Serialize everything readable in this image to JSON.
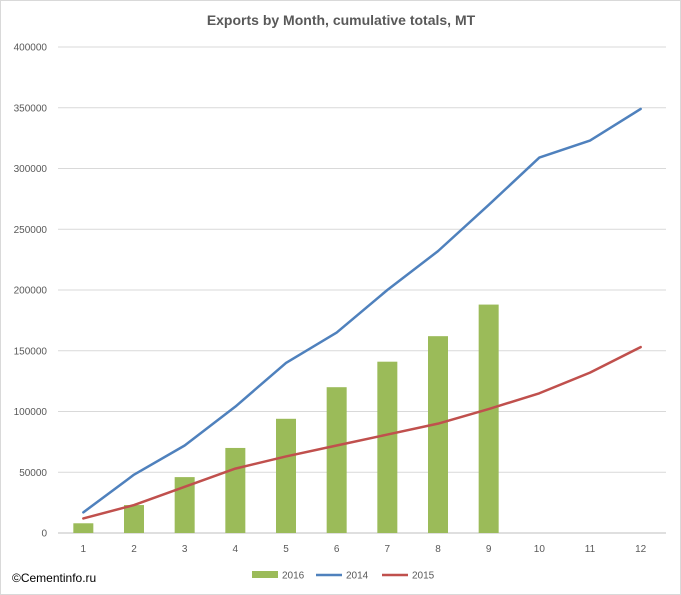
{
  "chart_data": {
    "type": "bar",
    "title": "Exports by Month, cumulative totals, MT",
    "xlabel": "",
    "ylabel": "",
    "categories": [
      "1",
      "2",
      "3",
      "4",
      "5",
      "6",
      "7",
      "8",
      "9",
      "10",
      "11",
      "12"
    ],
    "ylim": [
      0,
      400000
    ],
    "yticks": [
      "0",
      "50000",
      "100000",
      "150000",
      "200000",
      "250000",
      "300000",
      "350000",
      "400000"
    ],
    "grid": true,
    "legend_position": "bottom",
    "series": [
      {
        "name": "2016",
        "kind": "bar",
        "color": "#9bbb59",
        "values": [
          8000,
          23000,
          46000,
          70000,
          94000,
          120000,
          141000,
          162000,
          188000,
          null,
          null,
          null
        ]
      },
      {
        "name": "2014",
        "kind": "line",
        "color": "#4f81bd",
        "values": [
          17000,
          48000,
          72000,
          104000,
          140000,
          165000,
          200000,
          232000,
          270000,
          309000,
          323000,
          349000
        ]
      },
      {
        "name": "2015",
        "kind": "line",
        "color": "#c0504d",
        "values": [
          12000,
          23000,
          38000,
          53000,
          63000,
          72000,
          81000,
          90000,
          102000,
          115000,
          132000,
          153000
        ]
      }
    ]
  },
  "copyright": "©Cementinfo.ru"
}
